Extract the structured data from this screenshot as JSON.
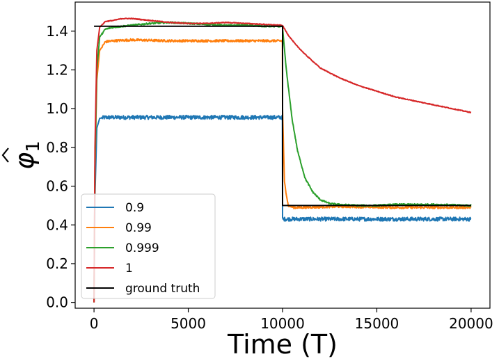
{
  "chart_data": {
    "type": "line",
    "xlabel": "Time (T)",
    "ylabel": "φ̂₁",
    "ylabel_parts": {
      "symbol": "φ",
      "subscript": "1"
    },
    "xlim": [
      -1000,
      21000
    ],
    "ylim": [
      -0.03,
      1.55
    ],
    "xticks": [
      0,
      5000,
      10000,
      15000,
      20000
    ],
    "xtick_labels": [
      "0",
      "5000",
      "10000",
      "15000",
      "20000"
    ],
    "yticks": [
      0.0,
      0.2,
      0.4,
      0.6,
      0.8,
      1.0,
      1.2,
      1.4
    ],
    "ytick_labels": [
      "0.0",
      "0.2",
      "0.4",
      "0.6",
      "0.8",
      "1.0",
      "1.2",
      "1.4"
    ],
    "grid": false,
    "legend_position": "lower-left",
    "series": [
      {
        "name": "0.9",
        "color": "#1f77b4",
        "noise": 0.01,
        "x": [
          0,
          50,
          150,
          300,
          600,
          1000,
          3000,
          5000,
          7000,
          9000,
          9990,
          10000,
          10050,
          12000,
          15000,
          18000,
          20000
        ],
        "y": [
          0.0,
          0.55,
          0.9,
          0.95,
          0.955,
          0.955,
          0.955,
          0.955,
          0.955,
          0.955,
          0.955,
          0.43,
          0.43,
          0.43,
          0.43,
          0.43,
          0.43
        ]
      },
      {
        "name": "0.99",
        "color": "#ff7f0e",
        "noise": 0.006,
        "x": [
          0,
          50,
          150,
          300,
          600,
          1000,
          2000,
          4000,
          6000,
          8000,
          9990,
          10000,
          10100,
          10300,
          10600,
          11000,
          13000,
          16000,
          20000
        ],
        "y": [
          0.0,
          0.7,
          1.15,
          1.3,
          1.345,
          1.35,
          1.355,
          1.35,
          1.35,
          1.35,
          1.35,
          1.0,
          0.62,
          0.5,
          0.49,
          0.49,
          0.495,
          0.49,
          0.49
        ]
      },
      {
        "name": "0.999",
        "color": "#2ca02c",
        "noise": 0.004,
        "x": [
          0,
          50,
          150,
          300,
          600,
          1000,
          2000,
          3000,
          4000,
          5000,
          6000,
          7000,
          8000,
          9000,
          9990,
          10200,
          10500,
          10800,
          11200,
          11600,
          12000,
          12500,
          13000,
          14000,
          15000,
          16000,
          18000,
          20000
        ],
        "y": [
          0.0,
          0.7,
          1.2,
          1.37,
          1.41,
          1.42,
          1.43,
          1.44,
          1.445,
          1.44,
          1.435,
          1.43,
          1.43,
          1.425,
          1.425,
          1.2,
          0.95,
          0.78,
          0.64,
          0.57,
          0.53,
          0.51,
          0.505,
          0.5,
          0.5,
          0.505,
          0.505,
          0.5
        ]
      },
      {
        "name": "1",
        "color": "#d62728",
        "noise": 0.002,
        "x": [
          0,
          50,
          150,
          300,
          600,
          1000,
          1500,
          2000,
          3000,
          4000,
          5000,
          6000,
          7000,
          8000,
          9000,
          9990,
          10300,
          10700,
          11200,
          12000,
          13000,
          14000,
          15000,
          16000,
          17000,
          18000,
          19000,
          20000
        ],
        "y": [
          0.0,
          0.8,
          1.3,
          1.42,
          1.45,
          1.455,
          1.465,
          1.465,
          1.455,
          1.445,
          1.44,
          1.44,
          1.445,
          1.44,
          1.435,
          1.43,
          1.38,
          1.33,
          1.28,
          1.21,
          1.16,
          1.12,
          1.09,
          1.06,
          1.04,
          1.02,
          1.0,
          0.98
        ]
      },
      {
        "name": "ground truth",
        "color": "#000000",
        "noise": 0,
        "x": [
          0,
          10000,
          10000,
          20000
        ],
        "y": [
          1.425,
          1.425,
          0.5,
          0.5
        ]
      }
    ]
  }
}
